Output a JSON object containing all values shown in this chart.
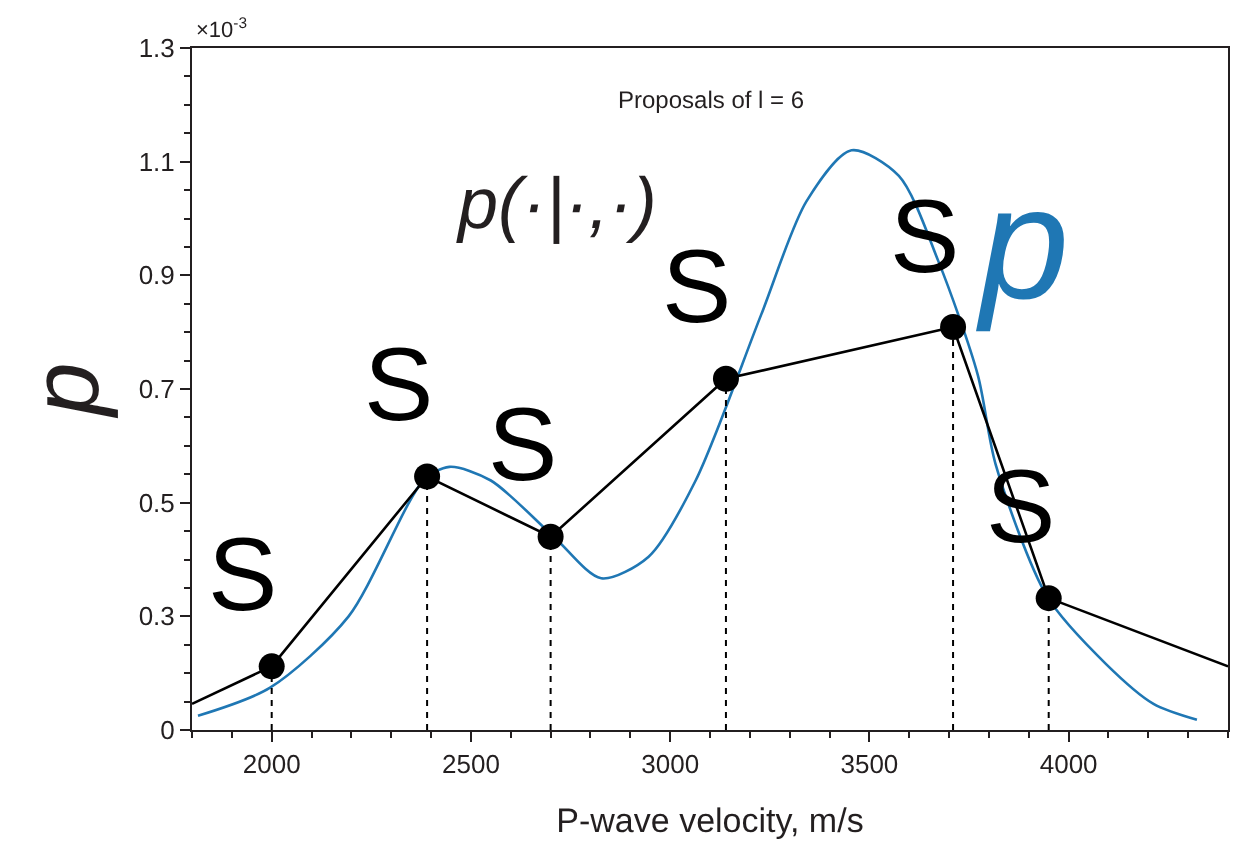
{
  "chart_data": {
    "type": "line",
    "xlabel": "P-wave velocity, m/s",
    "ylabel": "p",
    "annotations": [
      "×10$^{-3}$",
      "Proposals of l = 6",
      "p(·|·,·)"
    ],
    "xlim": [
      1800,
      4400
    ],
    "xticks": [
      2000,
      2500,
      3000,
      3500,
      4000
    ],
    "ylim": [
      0.1,
      1.3
    ],
    "yticks": [
      {
        "value": 0.1,
        "label": "0"
      },
      0.3,
      0.5,
      0.7,
      0.9,
      1.1,
      1.3
    ],
    "legend": false,
    "series": [
      {
        "name": "p",
        "color": "#1f77b4",
        "line_style": "solid",
        "marker": "none",
        "x": [
          1815,
          1995,
          2193,
          2381,
          2446,
          2550,
          2708,
          2827,
          2946,
          3064,
          3228,
          3342,
          3455,
          3574,
          3673,
          3772,
          3817,
          3946,
          4094,
          4213,
          4322
        ],
        "values": [
          0.125,
          0.174,
          0.3,
          0.539,
          0.563,
          0.539,
          0.44,
          0.367,
          0.405,
          0.539,
          0.83,
          1.03,
          1.12,
          1.075,
          0.925,
          0.725,
          0.567,
          0.335,
          0.216,
          0.146,
          0.118
        ]
      },
      {
        "color": "#000000",
        "line_style": "solid",
        "x": [
          1800,
          2000
        ],
        "values": [
          0.146,
          0.212
        ]
      },
      {
        "color": "#000000",
        "line_style": "solid",
        "marker": "circle",
        "x": [
          2000,
          2390,
          2700,
          3140,
          3710,
          3950
        ],
        "values": [
          0.212,
          0.546,
          0.44,
          0.718,
          0.809,
          0.332
        ],
        "value_labels": [
          "S",
          "S",
          "S",
          "S",
          "S",
          "S"
        ]
      },
      {
        "color": "#000000",
        "line_style": "solid",
        "x": [
          3950,
          4400
        ],
        "values": [
          0.332,
          0.212
        ]
      }
    ]
  }
}
